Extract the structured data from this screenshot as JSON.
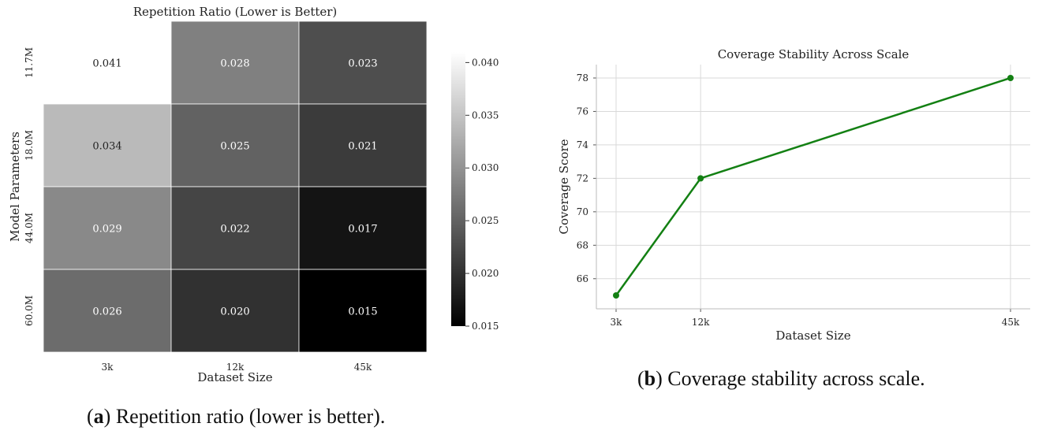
{
  "chart_data": [
    {
      "type": "heatmap",
      "title": "Repetition Ratio (Lower is Better)",
      "xlabel": "Dataset Size",
      "ylabel": "Model Parameters",
      "x_categories": [
        "3k",
        "12k",
        "45k"
      ],
      "y_categories": [
        "11.7M",
        "18.0M",
        "44.0M",
        "60.0M"
      ],
      "values": [
        [
          0.041,
          0.028,
          0.023
        ],
        [
          0.034,
          0.025,
          0.021
        ],
        [
          0.029,
          0.022,
          0.017
        ],
        [
          0.026,
          0.02,
          0.015
        ]
      ],
      "value_labels": [
        [
          "0.041",
          "0.028",
          "0.023"
        ],
        [
          "0.034",
          "0.025",
          "0.021"
        ],
        [
          "0.029",
          "0.022",
          "0.017"
        ],
        [
          "0.026",
          "0.020",
          "0.015"
        ]
      ],
      "colormap": "gray",
      "colorbar": {
        "range": [
          0.015,
          0.041
        ],
        "ticks": [
          0.015,
          0.02,
          0.025,
          0.03,
          0.035,
          0.04
        ],
        "tick_labels": [
          "0.015",
          "0.020",
          "0.025",
          "0.030",
          "0.035",
          "0.040"
        ]
      }
    },
    {
      "type": "line",
      "title": "Coverage Stability Across Scale",
      "xlabel": "Dataset Size",
      "ylabel": "Coverage Score",
      "x": [
        3,
        12,
        45
      ],
      "x_tick_labels": [
        "3k",
        "12k",
        "45k"
      ],
      "series": [
        {
          "values": [
            65,
            72,
            78
          ]
        }
      ],
      "ylim": [
        64.2,
        78.8
      ],
      "y_ticks": [
        66,
        68,
        70,
        72,
        74,
        76,
        78
      ],
      "grid": true,
      "line_color": "#138013"
    }
  ],
  "captions": {
    "a": {
      "letter": "a",
      "text": ") Repetition ratio (lower is better).",
      "open": "("
    },
    "b": {
      "letter": "b",
      "text": ") Coverage stability across scale.",
      "open": "("
    }
  }
}
